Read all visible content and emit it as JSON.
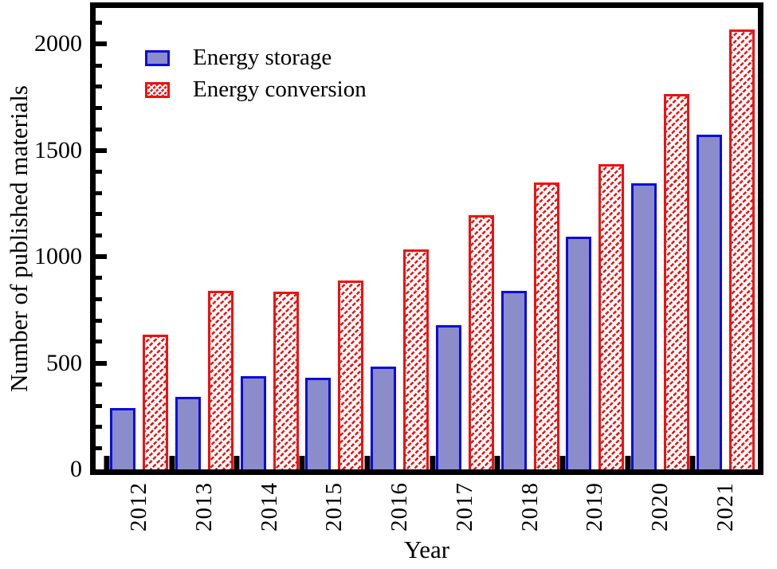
{
  "chart_data": {
    "type": "bar",
    "title": "",
    "categories": [
      "2012",
      "2013",
      "2014",
      "2015",
      "2016",
      "2017",
      "2018",
      "2019",
      "2020",
      "2021"
    ],
    "series": [
      {
        "name": "Energy storage",
        "style": "solid-fill",
        "values": [
          290,
          340,
          440,
          430,
          485,
          680,
          840,
          1095,
          1345,
          1575
        ]
      },
      {
        "name": "Energy conversion",
        "style": "diagonal-hatch",
        "values": [
          635,
          840,
          835,
          890,
          1035,
          1195,
          1350,
          1435,
          1765,
          2070
        ]
      }
    ],
    "xlabel": "Year",
    "ylabel": "Number of published materials",
    "ylim": [
      0,
      2170
    ],
    "yticks_major": [
      0,
      500,
      1000,
      1500,
      2000
    ],
    "ytick_minor_step": 100,
    "grid": false,
    "legend_position": "upper-left-inside"
  },
  "colors": {
    "storage_fill": "#8b8cca",
    "storage_border": "#0b0be0",
    "conversion_red": "#ee1111",
    "axis": "#000000",
    "background": "#ffffff"
  }
}
